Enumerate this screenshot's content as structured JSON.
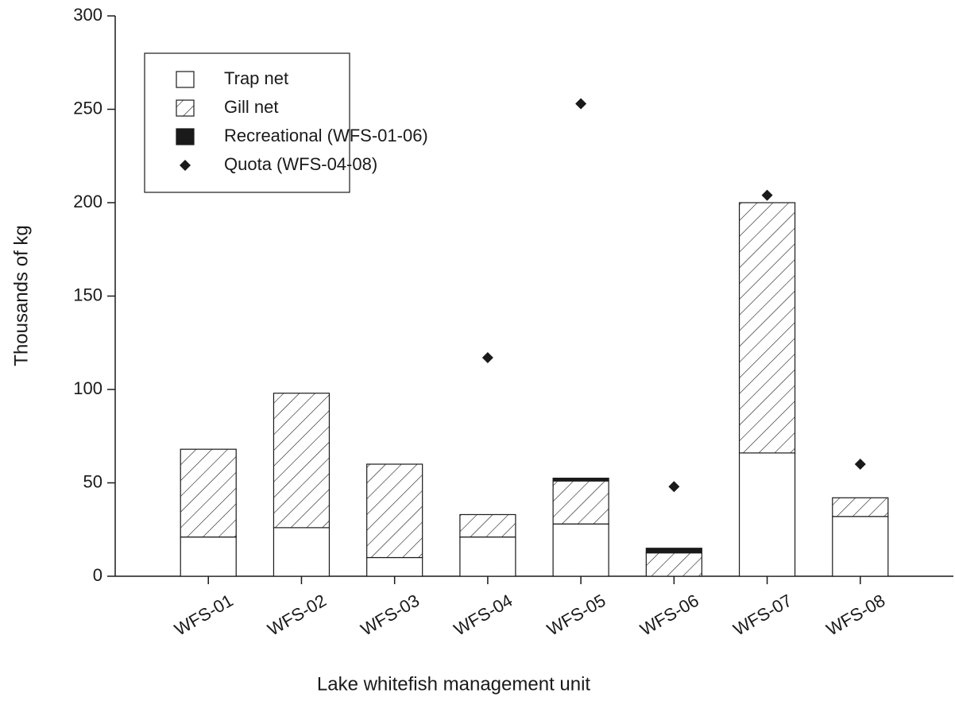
{
  "chart_data": {
    "type": "bar",
    "stacked": true,
    "x_label": "Lake whitefish management unit",
    "y_label": "Thousands of kg",
    "categories": [
      "WFS-01",
      "WFS-02",
      "WFS-03",
      "WFS-04",
      "WFS-05",
      "WFS-06",
      "WFS-07",
      "WFS-08"
    ],
    "series": [
      {
        "name": "Trap net",
        "type": "bar",
        "color": "#ffffff",
        "values": [
          21,
          26,
          10,
          21,
          28,
          0,
          66,
          32
        ]
      },
      {
        "name": "Gill net",
        "type": "bar",
        "color": "#ffffff",
        "pattern": "hatch",
        "values": [
          47,
          72,
          50,
          12,
          23,
          12.5,
          134,
          10
        ]
      },
      {
        "name": "Recreational (WFS-01-06)",
        "type": "bar",
        "color": "#1a1a1a",
        "values": [
          0,
          0,
          0,
          0,
          1.5,
          2.5,
          null,
          null
        ]
      },
      {
        "name": "Quota (WFS-04-08)",
        "type": "scatter",
        "marker": "diamond",
        "color": "#1a1a1a",
        "values": [
          null,
          null,
          null,
          117,
          253,
          48,
          204,
          60
        ]
      }
    ],
    "ylim": [
      0,
      300
    ],
    "yticks": [
      0,
      50,
      100,
      150,
      200,
      250,
      300
    ],
    "legend": "upper left"
  }
}
